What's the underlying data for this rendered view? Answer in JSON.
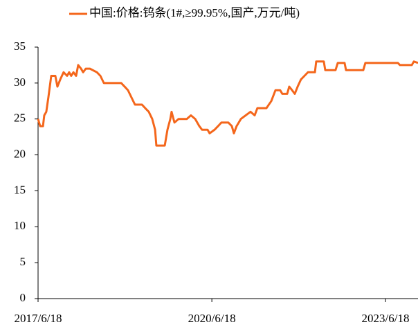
{
  "chart_data": {
    "type": "line",
    "series": [
      {
        "name": "中国:价格:钨条(1#,≥99.95%,国产,万元/吨)",
        "color": "#f4661b",
        "x": [
          "2017/6/18",
          "2017/7/1",
          "2017/7/19",
          "2017/7/27",
          "2017/8/9",
          "2017/8/22",
          "2017/8/31",
          "2017/9/9",
          "2017/10/5",
          "2017/10/18",
          "2017/11/5",
          "2017/11/26",
          "2017/12/18",
          "2017/12/31",
          "2018/1/13",
          "2018/1/27",
          "2018/2/13",
          "2018/2/26",
          "2018/3/16",
          "2018/3/29",
          "2018/4/15",
          "2018/5/11",
          "2018/6/24",
          "2018/7/16",
          "2018/8/7",
          "2018/11/24",
          "2018/12/16",
          "2019/1/6",
          "2019/1/28",
          "2019/2/19",
          "2019/4/4",
          "2019/4/25",
          "2019/5/17",
          "2019/6/8",
          "2019/6/26",
          "2019/7/4",
          "2019/8/26",
          "2019/9/12",
          "2019/9/30",
          "2019/10/8",
          "2019/10/26",
          "2019/11/21",
          "2020/1/12",
          "2020/2/7",
          "2020/3/5",
          "2020/3/31",
          "2020/4/17",
          "2020/5/22",
          "2020/6/4",
          "2020/7/5",
          "2020/7/27",
          "2020/8/17",
          "2020/9/30",
          "2020/10/22",
          "2020/11/4",
          "2020/11/21",
          "2020/12/18",
          "2021/1/17",
          "2021/2/17",
          "2021/3/15",
          "2021/4/1",
          "2021/5/28",
          "2021/6/28",
          "2021/7/24",
          "2021/8/23",
          "2021/9/5",
          "2021/10/6",
          "2021/10/19",
          "2021/11/6",
          "2021/11/23",
          "2021/12/11",
          "2022/1/1",
          "2022/1/23",
          "2022/2/14",
          "2022/3/30",
          "2022/4/7",
          "2022/5/25",
          "2022/6/3",
          "2022/8/7",
          "2022/8/21",
          "2022/10/3",
          "2022/10/12",
          "2023/1/29",
          "2023/2/11",
          "2023/9/4",
          "2023/9/17",
          "2023/12/1",
          "2023/12/14",
          "2024/1/9"
        ],
        "values": [
          25,
          24,
          24,
          25.5,
          26,
          28,
          29.5,
          31,
          31,
          29.5,
          30.5,
          31.5,
          31,
          31.5,
          31,
          31.5,
          31,
          32.5,
          32,
          31.5,
          32,
          32,
          31.5,
          31,
          30,
          30,
          29.5,
          29,
          28,
          27,
          27,
          26.5,
          26,
          25,
          23.5,
          21.3,
          21.3,
          23.5,
          25,
          26,
          24.5,
          25,
          25,
          25.5,
          25,
          24,
          23.5,
          23.5,
          23,
          23.5,
          24,
          24.5,
          24.5,
          24,
          23,
          24,
          25,
          25.5,
          26,
          25.5,
          26.5,
          26.5,
          27.5,
          29,
          29,
          28.5,
          28.5,
          29.5,
          29,
          28.5,
          29.5,
          30.5,
          31,
          31.5,
          31.5,
          33,
          33,
          31.8,
          31.8,
          32.8,
          32.8,
          31.8,
          31.8,
          32.8,
          32.8,
          32.5,
          32.5,
          33,
          32.8
        ]
      }
    ],
    "xlim": [
      "2017/6/18",
      "2024/1/9"
    ],
    "xticks": [
      "2017/6/18",
      "2020/6/18",
      "2023/6/18"
    ],
    "ylim": [
      0,
      35
    ],
    "yticks": [
      0,
      5,
      10,
      15,
      20,
      25,
      30,
      35
    ],
    "legend": "top"
  }
}
